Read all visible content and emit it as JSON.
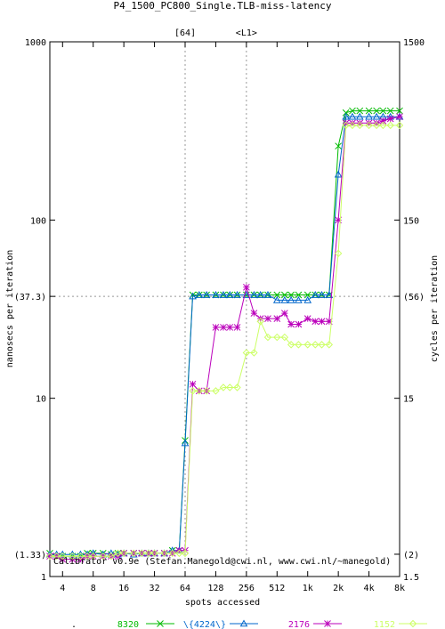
{
  "chart_data": {
    "type": "line",
    "title": "P4_1500_PC800_Single.TLB-miss-latency",
    "xlabel": "spots accessed",
    "ylabel": "nanosecs per iteration",
    "y2label": "cycles per iteration",
    "x_scale": "log",
    "y_scale": "log",
    "xlim": [
      3,
      8192
    ],
    "ylim": [
      1,
      1000
    ],
    "y2lim": [
      1.5,
      1500
    ],
    "grid": false,
    "legend_position": "bottom",
    "x_ticks": [
      {
        "value": 4,
        "label": "4"
      },
      {
        "value": 8,
        "label": "8"
      },
      {
        "value": 16,
        "label": "16"
      },
      {
        "value": 32,
        "label": "32"
      },
      {
        "value": 64,
        "label": "64"
      },
      {
        "value": 128,
        "label": "128"
      },
      {
        "value": 256,
        "label": "256"
      },
      {
        "value": 512,
        "label": "512"
      },
      {
        "value": 1024,
        "label": "1k"
      },
      {
        "value": 2048,
        "label": "2k"
      },
      {
        "value": 4096,
        "label": "4k"
      },
      {
        "value": 8192,
        "label": "8k"
      }
    ],
    "y_ticks": [
      {
        "value": 1,
        "label": "1"
      },
      {
        "value": 1.33,
        "label": "(1.33)"
      },
      {
        "value": 10,
        "label": "10"
      },
      {
        "value": 37.3,
        "label": "(37.3)"
      },
      {
        "value": 100,
        "label": "100"
      },
      {
        "value": 1000,
        "label": "1000"
      }
    ],
    "y2_ticks": [
      {
        "value": 1.5,
        "label": "1.5"
      },
      {
        "value": 2,
        "label": "(2)"
      },
      {
        "value": 15,
        "label": "15"
      },
      {
        "value": 56,
        "label": "(56)"
      },
      {
        "value": 150,
        "label": "150"
      },
      {
        "value": 1500,
        "label": "1500"
      }
    ],
    "top_markers": [
      {
        "value": 64,
        "label": "[64]"
      },
      {
        "value": 256,
        "label": "<L1>"
      }
    ],
    "reference_lines": {
      "y": 37.3,
      "y2": 56,
      "x": [
        64,
        256
      ]
    },
    "annotation": "Calibrator v0.9e (Stefan.Manegold@cwi.nl, www.cwi.nl/~manegold)",
    "series": [
      {
        "name": "8320",
        "color": "#00bb00",
        "marker": "x",
        "x": [
          3,
          3.5,
          4,
          5,
          6,
          7,
          8,
          10,
          12,
          14,
          16,
          20,
          24,
          28,
          32,
          40,
          48,
          56,
          64,
          76,
          88,
          104,
          128,
          152,
          176,
          208,
          256,
          304,
          352,
          416,
          512,
          608,
          704,
          832,
          1024,
          1216,
          1408,
          1664,
          2048,
          2432,
          2816,
          3328,
          4096,
          4864,
          5632,
          6656,
          8192
        ],
        "y": [
          1.35,
          1.3,
          1.3,
          1.3,
          1.3,
          1.35,
          1.35,
          1.35,
          1.33,
          1.35,
          1.35,
          1.35,
          1.35,
          1.35,
          1.35,
          1.35,
          1.4,
          1.4,
          5.8,
          38,
          38,
          38,
          38,
          38,
          38,
          38,
          38,
          38,
          38,
          38,
          38,
          38,
          38,
          38,
          38,
          38,
          38,
          38,
          260,
          400,
          410,
          410,
          410,
          410,
          410,
          410,
          410
        ]
      },
      {
        "name": "\\{4224\\}",
        "color": "#0066cc",
        "marker": "triangle",
        "x": [
          3,
          3.5,
          4,
          5,
          6,
          7,
          8,
          10,
          12,
          14,
          16,
          20,
          24,
          28,
          32,
          40,
          48,
          56,
          64,
          76,
          88,
          104,
          128,
          152,
          176,
          208,
          256,
          304,
          352,
          416,
          512,
          608,
          704,
          832,
          1024,
          1216,
          1408,
          1664,
          2048,
          2432,
          2816,
          3328,
          4096,
          4864,
          5632,
          6656,
          8192
        ],
        "y": [
          1.33,
          1.33,
          1.33,
          1.33,
          1.33,
          1.33,
          1.35,
          1.33,
          1.35,
          1.33,
          1.35,
          1.33,
          1.35,
          1.35,
          1.35,
          1.35,
          1.4,
          1.4,
          5.6,
          37.3,
          38,
          38,
          38,
          38,
          38,
          38,
          38,
          38,
          38,
          38,
          35.5,
          35.5,
          35.5,
          35.5,
          35.5,
          38,
          38,
          38,
          180,
          380,
          380,
          380,
          380,
          380,
          380,
          380,
          380
        ]
      },
      {
        "name": "2176",
        "color": "#bb00bb",
        "marker": "star",
        "x": [
          3,
          3.5,
          4,
          5,
          6,
          7,
          8,
          10,
          12,
          14,
          16,
          20,
          24,
          28,
          32,
          40,
          48,
          56,
          64,
          76,
          88,
          104,
          128,
          152,
          176,
          208,
          256,
          304,
          352,
          416,
          512,
          608,
          704,
          832,
          1024,
          1216,
          1408,
          1664,
          2048,
          2432,
          2816,
          3328,
          4096,
          4864,
          5632,
          6656,
          8192
        ],
        "y": [
          1.3,
          1.3,
          1.25,
          1.25,
          1.25,
          1.3,
          1.3,
          1.3,
          1.3,
          1.3,
          1.35,
          1.35,
          1.35,
          1.35,
          1.35,
          1.35,
          1.35,
          1.4,
          1.4,
          12,
          11,
          11,
          25,
          25,
          25,
          25,
          42,
          30,
          28,
          28,
          28,
          30,
          26,
          26,
          28,
          27,
          27,
          27,
          100,
          350,
          350,
          350,
          350,
          350,
          360,
          370,
          380
        ]
      },
      {
        "name": "1152",
        "color": "#ccff66",
        "marker": "diamond",
        "x": [
          3,
          3.5,
          4,
          5,
          6,
          7,
          8,
          10,
          12,
          14,
          16,
          20,
          24,
          28,
          32,
          40,
          48,
          56,
          64,
          76,
          88,
          104,
          128,
          152,
          176,
          208,
          256,
          304,
          352,
          416,
          512,
          608,
          704,
          832,
          1024,
          1216,
          1408,
          1664,
          2048,
          2432,
          2816,
          3328,
          4096,
          4864,
          5632,
          6656,
          8192
        ],
        "y": [
          1.3,
          1.3,
          1.3,
          1.3,
          1.3,
          1.3,
          1.3,
          1.3,
          1.3,
          1.35,
          1.35,
          1.35,
          1.35,
          1.35,
          1.35,
          1.35,
          1.35,
          1.35,
          1.35,
          11,
          11,
          11,
          11,
          11.5,
          11.5,
          11.5,
          18,
          18,
          27,
          22,
          22,
          22,
          20,
          20,
          20,
          20,
          20,
          20,
          65,
          340,
          340,
          340,
          340,
          340,
          340,
          340,
          340
        ]
      }
    ]
  }
}
